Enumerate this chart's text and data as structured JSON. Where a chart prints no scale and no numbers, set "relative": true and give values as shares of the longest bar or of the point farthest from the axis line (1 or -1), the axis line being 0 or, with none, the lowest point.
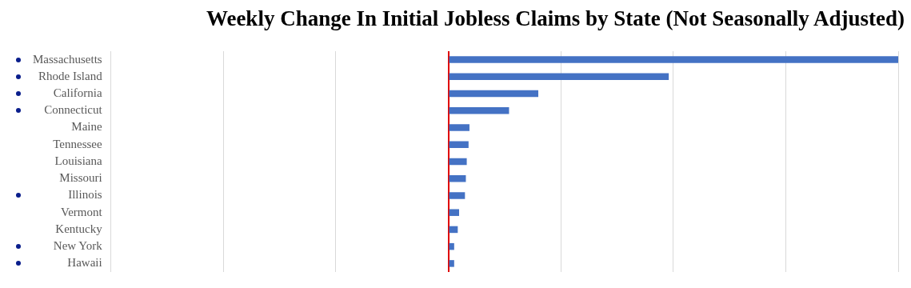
{
  "chart_data": {
    "type": "bar",
    "orientation": "horizontal",
    "relative": true,
    "title": "Weekly Change In Initial Jobless Claims by State (Not Seasonally Adjusted)",
    "categories": [
      "Massachusetts",
      "Rhode Island",
      "California",
      "Connecticut",
      "Maine",
      "Tennessee",
      "Louisiana",
      "Missouri",
      "Illinois",
      "Vermont",
      "Kentucky",
      "New York",
      "Hawaii"
    ],
    "values": [
      1,
      0.49,
      0.2,
      0.135,
      0.047,
      0.045,
      0.041,
      0.039,
      0.037,
      0.024,
      0.021,
      0.013,
      0.013
    ],
    "color": "#4472c4",
    "grid": "x",
    "tick_labels": "y",
    "legend": false
  }
}
